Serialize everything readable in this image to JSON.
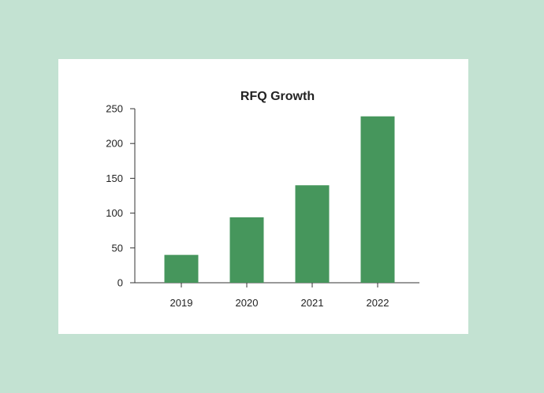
{
  "colors": {
    "background": "#c3e2d2",
    "card": "#ffffff",
    "bar": "#46965c",
    "text": "#222222",
    "axis": "#333333"
  },
  "chart_data": {
    "type": "bar",
    "title": "RFQ Growth",
    "xlabel": "",
    "ylabel": "",
    "categories": [
      "2019",
      "2020",
      "2021",
      "2022"
    ],
    "values": [
      40,
      94,
      140,
      239
    ],
    "ylim": [
      0,
      250
    ],
    "yticks": [
      0,
      50,
      100,
      150,
      200,
      250
    ],
    "grid": false,
    "legend": "none"
  }
}
